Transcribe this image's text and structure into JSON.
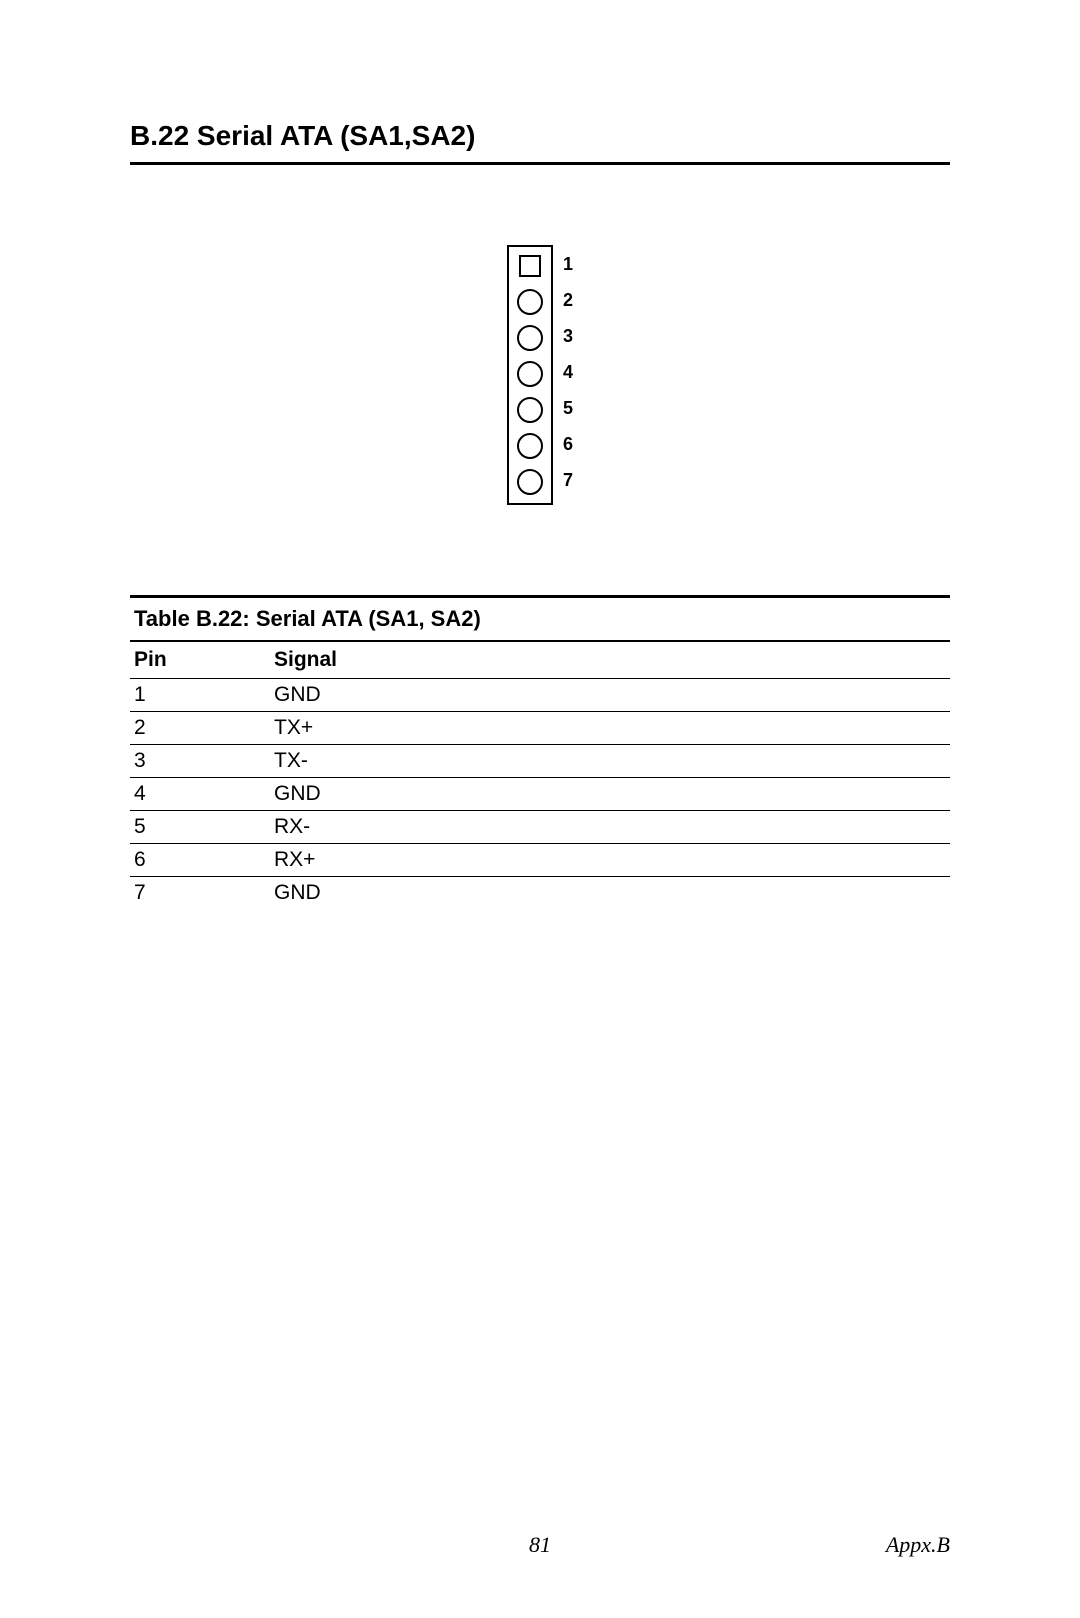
{
  "section": {
    "title": "B.22 Serial ATA (SA1,SA2)"
  },
  "connector": {
    "pins": [
      {
        "num": "1",
        "shape": "square"
      },
      {
        "num": "2",
        "shape": "circle"
      },
      {
        "num": "3",
        "shape": "circle"
      },
      {
        "num": "4",
        "shape": "circle"
      },
      {
        "num": "5",
        "shape": "circle"
      },
      {
        "num": "6",
        "shape": "circle"
      },
      {
        "num": "7",
        "shape": "circle"
      }
    ],
    "box_border_color": "#000000",
    "shape_border_color": "#000000",
    "label_fontsize": 18
  },
  "table": {
    "title": "Table B.22: Serial ATA (SA1, SA2)",
    "columns": [
      "Pin",
      "Signal"
    ],
    "rows": [
      [
        "1",
        "GND"
      ],
      [
        "2",
        "TX+"
      ],
      [
        "3",
        "TX-"
      ],
      [
        "4",
        "GND"
      ],
      [
        "5",
        "RX-"
      ],
      [
        "6",
        "RX+"
      ],
      [
        "7",
        "GND"
      ]
    ],
    "title_fontsize": 22,
    "header_fontsize": 21,
    "cell_fontsize": 21,
    "border_color": "#000000"
  },
  "footer": {
    "page_number": "81",
    "appendix": "Appx.B"
  }
}
